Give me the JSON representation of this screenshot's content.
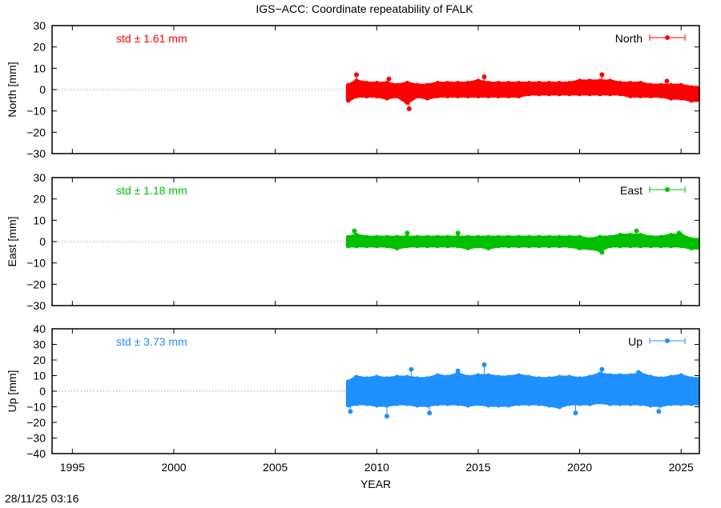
{
  "title": "IGS−ACC: Coordinate repeatability of FALK",
  "timestamp": "28/11/25 03:16",
  "chart_data": [
    {
      "type": "scatter",
      "xlabel": "YEAR",
      "ylabel": "North [mm]",
      "xlim": [
        1994,
        2025.9
      ],
      "ylim": [
        -30,
        30
      ],
      "yticks": [
        -30,
        -20,
        -10,
        0,
        10,
        20,
        30
      ],
      "ytick_labels": [
        "−30",
        "−20",
        "−10",
        "0",
        "10",
        "20",
        "30"
      ],
      "color": "#ff0000",
      "legend": "North",
      "legend_position": "top-right",
      "annotation": "std ± 1.61 mm",
      "zero_line": true,
      "envelope_note_format": "[year, min, max]",
      "bins": [
        [
          2008.6,
          -5,
          2
        ],
        [
          2009.0,
          -3,
          4
        ],
        [
          2009.5,
          -3,
          3
        ],
        [
          2010.0,
          -3,
          3
        ],
        [
          2010.5,
          -4,
          3
        ],
        [
          2011.0,
          -3,
          2
        ],
        [
          2011.5,
          -6,
          3
        ],
        [
          2012.0,
          -3,
          2
        ],
        [
          2012.5,
          -4,
          2
        ],
        [
          2013.0,
          -3,
          3
        ],
        [
          2013.5,
          -3,
          3
        ],
        [
          2014.0,
          -3,
          3
        ],
        [
          2014.5,
          -3,
          3
        ],
        [
          2015.0,
          -3,
          4
        ],
        [
          2015.5,
          -3,
          3
        ],
        [
          2016.0,
          -3,
          3
        ],
        [
          2016.5,
          -3,
          3
        ],
        [
          2017.0,
          -3,
          3
        ],
        [
          2017.5,
          -2,
          3
        ],
        [
          2018.0,
          -2,
          3
        ],
        [
          2018.5,
          -2,
          3
        ],
        [
          2019.0,
          -2,
          3
        ],
        [
          2019.5,
          -2,
          3
        ],
        [
          2020.0,
          -2,
          4
        ],
        [
          2020.5,
          -2,
          4
        ],
        [
          2021.0,
          -2,
          4
        ],
        [
          2021.5,
          -2,
          4
        ],
        [
          2022.0,
          -2,
          3
        ],
        [
          2022.5,
          -3,
          3
        ],
        [
          2023.0,
          -3,
          3
        ],
        [
          2023.5,
          -3,
          2
        ],
        [
          2024.0,
          -3,
          2
        ],
        [
          2024.5,
          -4,
          2
        ],
        [
          2025.0,
          -4,
          2
        ],
        [
          2025.5,
          -5,
          1
        ]
      ],
      "outliers": [
        [
          2009.0,
          7
        ],
        [
          2011.6,
          -9
        ],
        [
          2015.3,
          6
        ],
        [
          2021.1,
          7
        ],
        [
          2010.6,
          5
        ],
        [
          2024.3,
          4
        ]
      ]
    },
    {
      "type": "scatter",
      "xlabel": "YEAR",
      "ylabel": "East [mm]",
      "xlim": [
        1994,
        2025.9
      ],
      "ylim": [
        -30,
        30
      ],
      "yticks": [
        -30,
        -20,
        -10,
        0,
        10,
        20,
        30
      ],
      "ytick_labels": [
        "−30",
        "−20",
        "−10",
        "0",
        "10",
        "20",
        "30"
      ],
      "color": "#00c000",
      "legend": "East",
      "legend_position": "top-right",
      "annotation": "std ± 1.18 mm",
      "zero_line": true,
      "bins": [
        [
          2008.6,
          -2,
          2
        ],
        [
          2009.0,
          -2,
          3
        ],
        [
          2009.5,
          -2,
          2
        ],
        [
          2010.0,
          -2,
          2
        ],
        [
          2010.5,
          -2,
          2
        ],
        [
          2011.0,
          -3,
          2
        ],
        [
          2011.5,
          -2,
          2
        ],
        [
          2012.0,
          -2,
          2
        ],
        [
          2012.5,
          -2,
          2
        ],
        [
          2013.0,
          -2,
          2
        ],
        [
          2013.5,
          -2,
          2
        ],
        [
          2014.0,
          -2,
          2
        ],
        [
          2014.5,
          -3,
          2
        ],
        [
          2015.0,
          -2,
          2
        ],
        [
          2015.5,
          -3,
          2
        ],
        [
          2016.0,
          -2,
          2
        ],
        [
          2016.5,
          -2,
          2
        ],
        [
          2017.0,
          -2,
          2
        ],
        [
          2017.5,
          -2,
          2
        ],
        [
          2018.0,
          -2,
          2
        ],
        [
          2018.5,
          -2,
          2
        ],
        [
          2019.0,
          -2,
          2
        ],
        [
          2019.5,
          -2,
          2
        ],
        [
          2020.0,
          -3,
          2
        ],
        [
          2020.5,
          -3,
          1
        ],
        [
          2021.0,
          -4,
          2
        ],
        [
          2021.5,
          -2,
          2
        ],
        [
          2022.0,
          -2,
          3
        ],
        [
          2022.5,
          -2,
          3
        ],
        [
          2023.0,
          -2,
          3
        ],
        [
          2023.5,
          -2,
          2
        ],
        [
          2024.0,
          -2,
          2
        ],
        [
          2024.5,
          -2,
          3
        ],
        [
          2025.0,
          -2,
          3
        ],
        [
          2025.5,
          -3,
          1
        ]
      ],
      "outliers": [
        [
          2008.9,
          5
        ],
        [
          2011.5,
          4
        ],
        [
          2014.0,
          4
        ],
        [
          2021.1,
          -5
        ],
        [
          2022.8,
          5
        ],
        [
          2024.9,
          4
        ]
      ]
    },
    {
      "type": "scatter",
      "xlabel": "YEAR",
      "ylabel": "Up [mm]",
      "xlim": [
        1994,
        2025.9
      ],
      "ylim": [
        -40,
        40
      ],
      "xticks": [
        1995,
        2000,
        2005,
        2010,
        2015,
        2020,
        2025
      ],
      "xtick_labels": [
        "1995",
        "2000",
        "2005",
        "2010",
        "2015",
        "2020",
        "2025"
      ],
      "yticks": [
        -40,
        -30,
        -20,
        -10,
        0,
        10,
        20,
        30,
        40
      ],
      "ytick_labels": [
        "−40",
        "−30",
        "−20",
        "−10",
        "0",
        "10",
        "20",
        "30",
        "40"
      ],
      "color": "#1e90ff",
      "legend": "Up",
      "legend_position": "top-right",
      "annotation": "std ± 3.73 mm",
      "zero_line": true,
      "bins": [
        [
          2008.6,
          -9,
          6
        ],
        [
          2009.0,
          -8,
          9
        ],
        [
          2009.5,
          -8,
          8
        ],
        [
          2010.0,
          -9,
          9
        ],
        [
          2010.5,
          -9,
          8
        ],
        [
          2011.0,
          -8,
          9
        ],
        [
          2011.5,
          -8,
          9
        ],
        [
          2012.0,
          -9,
          8
        ],
        [
          2012.5,
          -9,
          8
        ],
        [
          2013.0,
          -8,
          10
        ],
        [
          2013.5,
          -8,
          9
        ],
        [
          2014.0,
          -8,
          11
        ],
        [
          2014.5,
          -9,
          9
        ],
        [
          2015.0,
          -8,
          10
        ],
        [
          2015.5,
          -9,
          10
        ],
        [
          2016.0,
          -9,
          9
        ],
        [
          2016.5,
          -9,
          9
        ],
        [
          2017.0,
          -8,
          10
        ],
        [
          2017.5,
          -8,
          9
        ],
        [
          2018.0,
          -8,
          8
        ],
        [
          2018.5,
          -9,
          8
        ],
        [
          2019.0,
          -10,
          9
        ],
        [
          2019.5,
          -8,
          9
        ],
        [
          2020.0,
          -8,
          8
        ],
        [
          2020.5,
          -8,
          9
        ],
        [
          2021.0,
          -7,
          11
        ],
        [
          2021.5,
          -8,
          10
        ],
        [
          2022.0,
          -8,
          10
        ],
        [
          2022.5,
          -8,
          10
        ],
        [
          2023.0,
          -8,
          11
        ],
        [
          2023.5,
          -9,
          9
        ],
        [
          2024.0,
          -9,
          8
        ],
        [
          2024.5,
          -8,
          9
        ],
        [
          2025.0,
          -8,
          10
        ],
        [
          2025.5,
          -8,
          8
        ]
      ],
      "outliers": [
        [
          2008.7,
          -13
        ],
        [
          2010.5,
          -16
        ],
        [
          2011.7,
          14
        ],
        [
          2012.6,
          -14
        ],
        [
          2014.0,
          13
        ],
        [
          2015.3,
          17
        ],
        [
          2019.8,
          -14
        ],
        [
          2021.1,
          14
        ],
        [
          2022.9,
          12
        ],
        [
          2023.9,
          -13
        ]
      ]
    }
  ]
}
